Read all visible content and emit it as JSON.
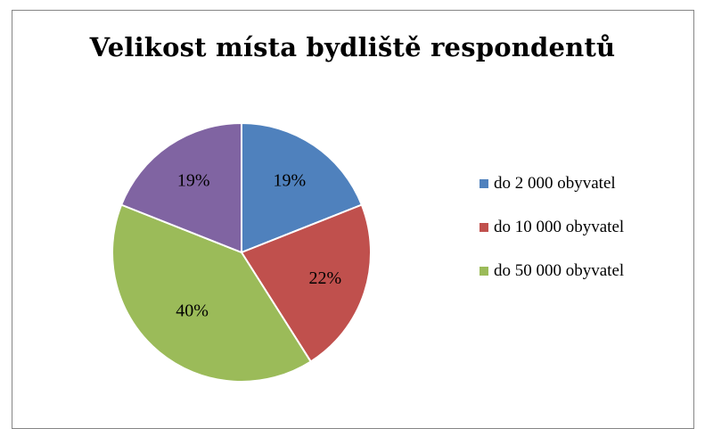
{
  "chart_data": {
    "type": "pie",
    "title": "Velikost místa bydliště respondentů",
    "categories": [
      "do 2 000 obyvatel",
      "do 10 000 obyvatel",
      "do 50 000 obyvatel",
      ""
    ],
    "values": [
      19,
      22,
      40,
      19
    ],
    "data_labels": [
      "19%",
      "22%",
      "40%",
      "19%"
    ],
    "colors": [
      "#4f81bd",
      "#c0504d",
      "#9bbb59",
      "#8064a2"
    ],
    "legend_entries": [
      {
        "label": "do 2 000 obyvatel",
        "color": "#4f81bd"
      },
      {
        "label": "do 10 000 obyvatel",
        "color": "#c0504d"
      },
      {
        "label": "do 50 000 obyvatel",
        "color": "#9bbb59"
      }
    ],
    "legend_position": "right"
  }
}
